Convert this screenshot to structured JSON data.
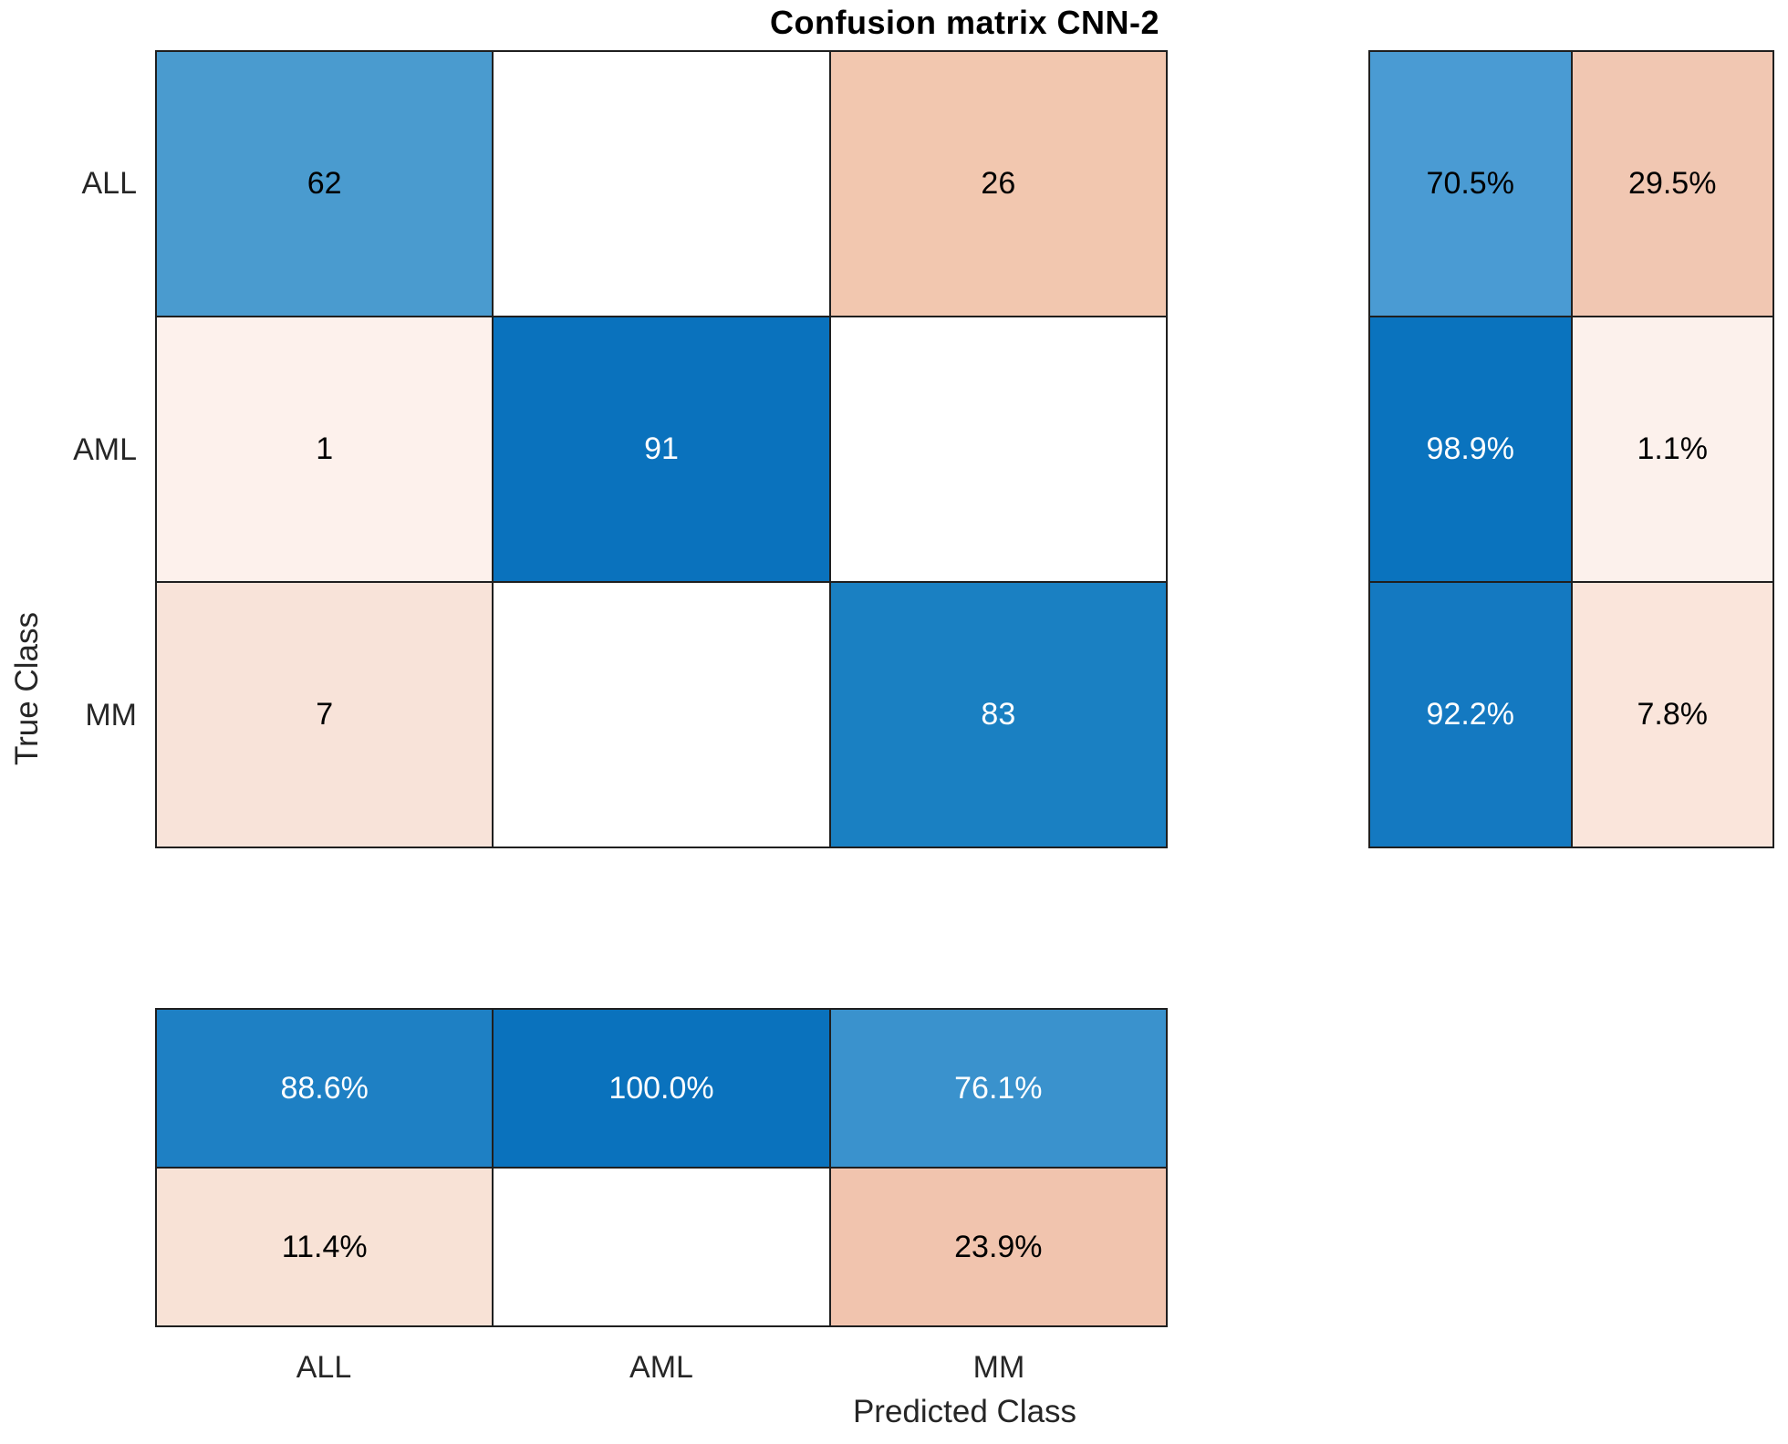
{
  "title": "Confusion matrix CNN-2",
  "axes": {
    "xlabel": "Predicted Class",
    "ylabel": "True Class"
  },
  "y_ticks": [
    "ALL",
    "AML",
    "MM"
  ],
  "x_ticks": [
    "ALL",
    "AML",
    "MM"
  ],
  "colors": {
    "background": "#ffffff",
    "grid_border": "#1f1f1f",
    "tick_text": "#262626",
    "diagonal_max_blue": "#0a72bd",
    "offdiagonal_max_peach": "#f1c4ae"
  },
  "chart_data": {
    "type": "heatmap",
    "title": "Confusion matrix CNN-2",
    "xlabel": "Predicted Class",
    "ylabel": "True Class",
    "classes": [
      "ALL",
      "AML",
      "MM"
    ],
    "matrix": [
      [
        62,
        0,
        26
      ],
      [
        1,
        91,
        0
      ],
      [
        7,
        0,
        83
      ]
    ],
    "row_summary_pct": [
      [
        70.5,
        29.5
      ],
      [
        98.9,
        1.1
      ],
      [
        92.2,
        7.8
      ]
    ],
    "column_summary_pct": [
      [
        88.6,
        100.0,
        76.1
      ],
      [
        11.4,
        null,
        23.9
      ]
    ],
    "legend_position": "none",
    "grid": true
  },
  "main": {
    "cells": [
      {
        "text": "62",
        "bg": "#4a9bcf",
        "fg": "#000000"
      },
      {
        "text": "",
        "bg": "#ffffff",
        "fg": "#000000"
      },
      {
        "text": "26",
        "bg": "#f2c7af",
        "fg": "#000000"
      },
      {
        "text": "1",
        "bg": "#fdf1ec",
        "fg": "#000000"
      },
      {
        "text": "91",
        "bg": "#0a72bd",
        "fg": "#ffffff"
      },
      {
        "text": "",
        "bg": "#ffffff",
        "fg": "#000000"
      },
      {
        "text": "7",
        "bg": "#f8e3d9",
        "fg": "#000000"
      },
      {
        "text": "",
        "bg": "#ffffff",
        "fg": "#000000"
      },
      {
        "text": "83",
        "bg": "#1a80c2",
        "fg": "#ffffff"
      }
    ]
  },
  "row_summary": {
    "cells": [
      {
        "text": "70.5%",
        "bg": "#4a9bd3",
        "fg": "#000000"
      },
      {
        "text": "29.5%",
        "bg": "#f1c7b2",
        "fg": "#000000"
      },
      {
        "text": "98.9%",
        "bg": "#0a73be",
        "fg": "#ffffff"
      },
      {
        "text": "1.1%",
        "bg": "#fcf1ec",
        "fg": "#000000"
      },
      {
        "text": "92.2%",
        "bg": "#1479c1",
        "fg": "#ffffff"
      },
      {
        "text": "7.8%",
        "bg": "#fae5db",
        "fg": "#000000"
      }
    ]
  },
  "col_summary": {
    "cells": [
      {
        "text": "88.6%",
        "bg": "#1e80c4",
        "fg": "#ffffff"
      },
      {
        "text": "100.0%",
        "bg": "#0a72bd",
        "fg": "#ffffff"
      },
      {
        "text": "76.1%",
        "bg": "#3a92cd",
        "fg": "#ffffff"
      },
      {
        "text": "11.4%",
        "bg": "#f8e2d6",
        "fg": "#000000"
      },
      {
        "text": "",
        "bg": "#ffffff",
        "fg": "#000000"
      },
      {
        "text": "23.9%",
        "bg": "#f1c4ae",
        "fg": "#000000"
      }
    ]
  }
}
